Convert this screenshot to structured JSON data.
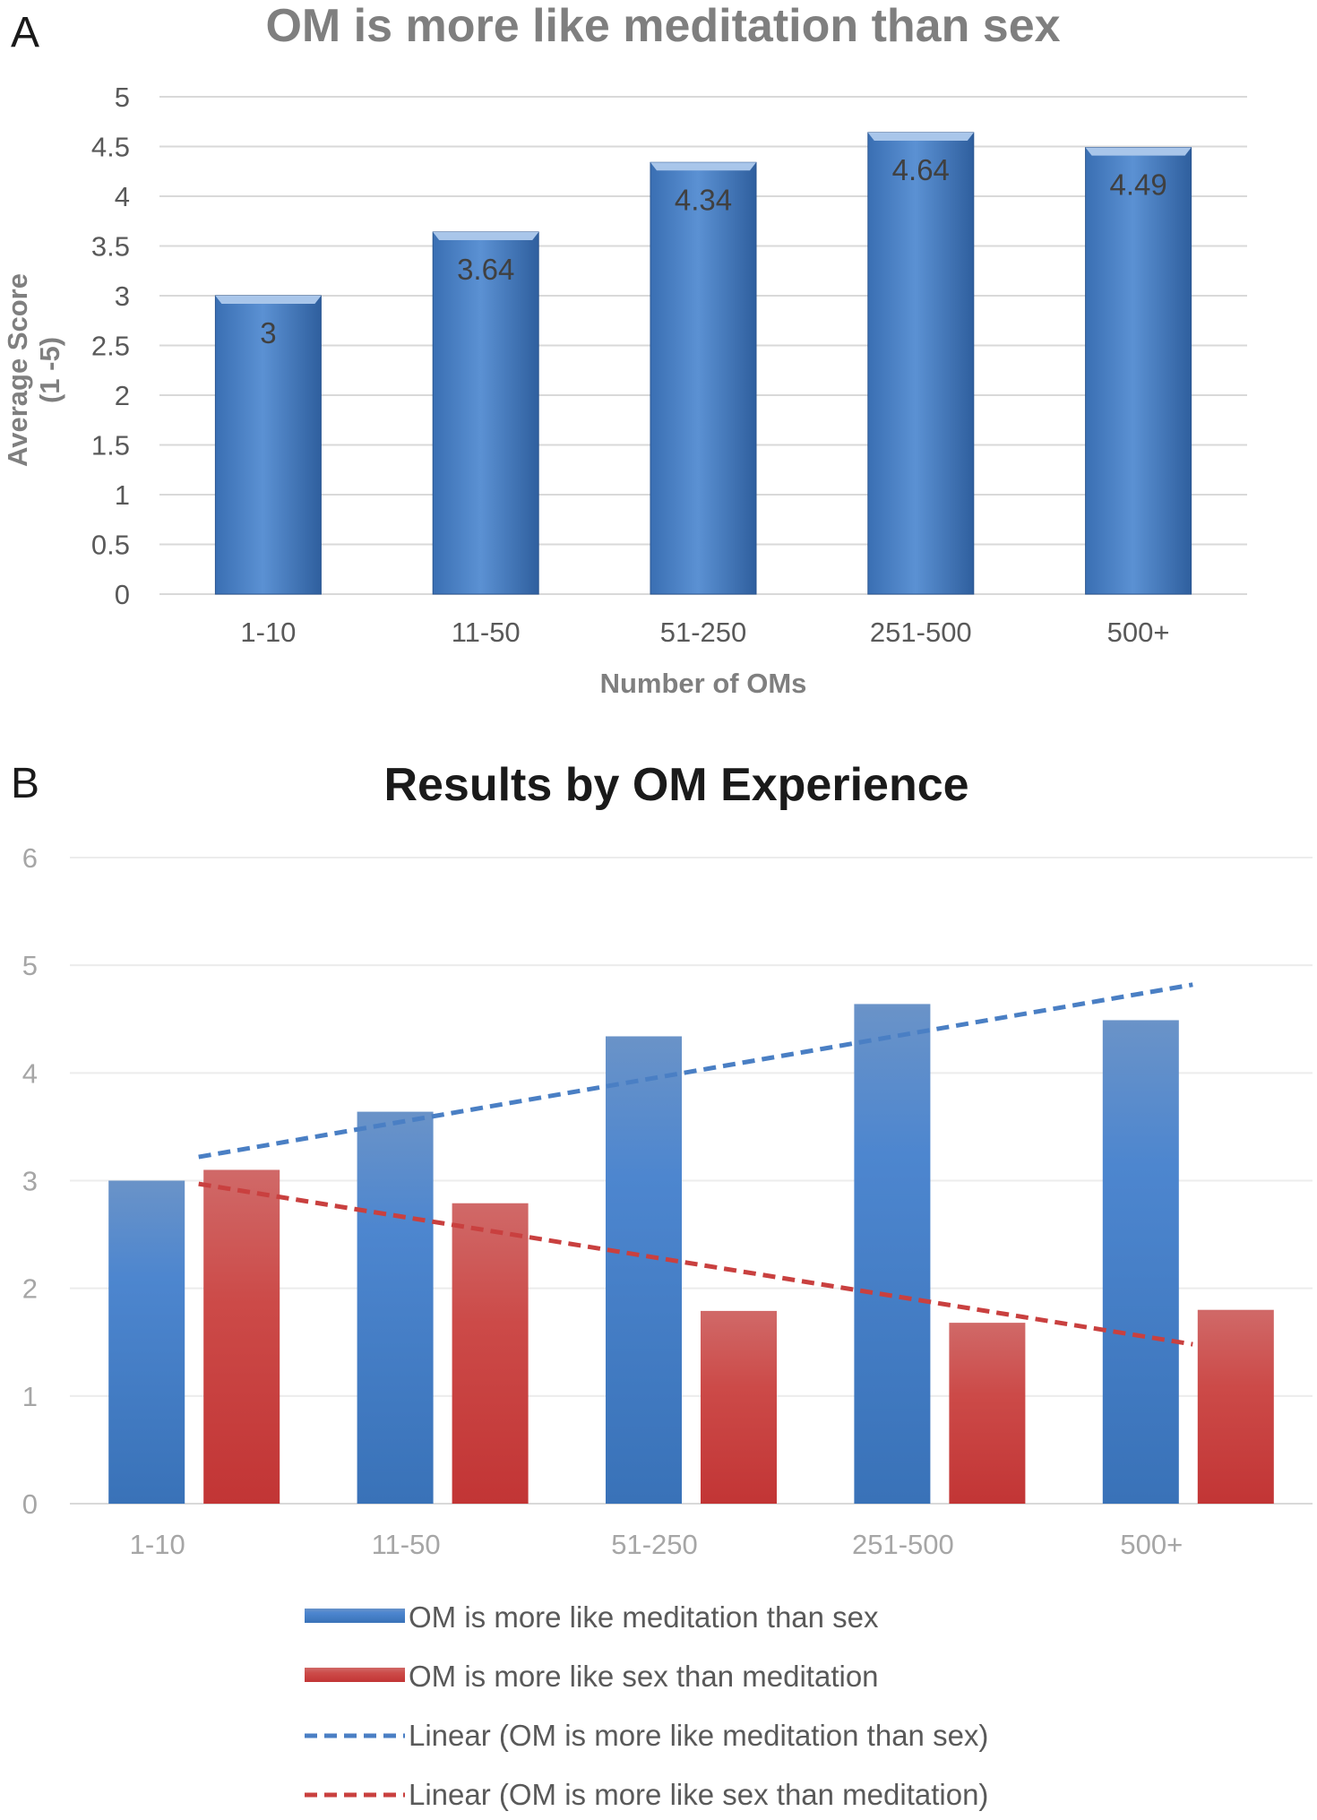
{
  "colors": {
    "blue": "#4a7fc4",
    "red": "#c9403f",
    "trend_blue": "#4a7fc4",
    "trend_red": "#c9403f",
    "grid": "#d9d9d9"
  },
  "chart_data": [
    {
      "panel": "A",
      "type": "bar",
      "title": "OM is more like meditation than sex",
      "xlabel": "Number of OMs",
      "ylabel": "Average Score",
      "ylabel_sub": "(1 -5)",
      "categories": [
        "1-10",
        "11-50",
        "51-250",
        "251-500",
        "500+"
      ],
      "values": [
        3,
        3.64,
        4.34,
        4.64,
        4.49
      ],
      "ylim": [
        0,
        5
      ],
      "yticks": [
        "0",
        "0.5",
        "1",
        "1.5",
        "2",
        "2.5",
        "3",
        "3.5",
        "4",
        "4.5",
        "5"
      ],
      "grid": true
    },
    {
      "panel": "B",
      "type": "bar",
      "title": "Results by OM Experience",
      "categories": [
        "1-10",
        "11-50",
        "51-250",
        "251-500",
        "500+"
      ],
      "series": [
        {
          "name": "OM is more like meditation than sex",
          "values": [
            3,
            3.64,
            4.34,
            4.64,
            4.49
          ]
        },
        {
          "name": "OM is more like sex than meditation",
          "values": [
            3.1,
            2.79,
            1.79,
            1.68,
            1.8
          ]
        }
      ],
      "trendlines": [
        {
          "name": "Linear (OM is more like meditation than sex)",
          "series": 0,
          "start": 3.22,
          "end": 4.82
        },
        {
          "name": "Linear (OM is more like sex than meditation)",
          "series": 1,
          "start": 2.97,
          "end": 1.48
        }
      ],
      "ylim": [
        0,
        6
      ],
      "yticks": [
        "0",
        "1",
        "2",
        "3",
        "4",
        "5",
        "6"
      ],
      "legend_position": "bottom",
      "grid": true
    }
  ]
}
